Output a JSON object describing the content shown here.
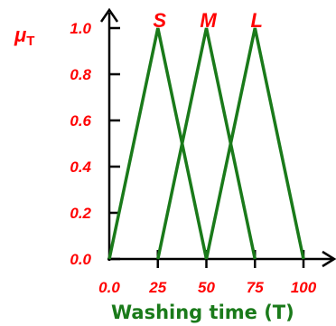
{
  "chart_data": {
    "type": "line",
    "ylabel": "μ",
    "ylabel_sub": "T",
    "xlabel": "Washing time (T)",
    "x_ticks": [
      0,
      25,
      50,
      75,
      100
    ],
    "x_tick_labels": [
      "0.0",
      "25",
      "50",
      "75",
      "100"
    ],
    "y_ticks": [
      0,
      0.2,
      0.4,
      0.6,
      0.8,
      1.0
    ],
    "y_tick_labels": [
      "0.0",
      "0.2",
      "0.4",
      "0.6",
      "0.8",
      "1.0"
    ],
    "xlim": [
      0,
      100
    ],
    "ylim": [
      0,
      1.0
    ],
    "grid": false,
    "series": [
      {
        "name": "S",
        "x": [
          0,
          25,
          50
        ],
        "y": [
          0,
          1,
          0
        ]
      },
      {
        "name": "M",
        "x": [
          25,
          50,
          75
        ],
        "y": [
          0,
          1,
          0
        ]
      },
      {
        "name": "L",
        "x": [
          50,
          75,
          100
        ],
        "y": [
          0,
          1,
          0
        ]
      }
    ],
    "colors": {
      "lines": "#1a7a1a",
      "axes": "#000000",
      "labels": "#ff0000",
      "xlabel": "#1a7a1a"
    }
  }
}
